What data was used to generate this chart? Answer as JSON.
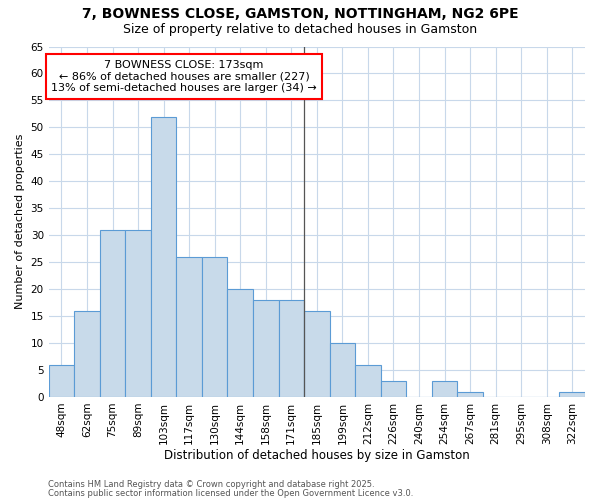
{
  "title1": "7, BOWNESS CLOSE, GAMSTON, NOTTINGHAM, NG2 6PE",
  "title2": "Size of property relative to detached houses in Gamston",
  "xlabel": "Distribution of detached houses by size in Gamston",
  "ylabel": "Number of detached properties",
  "categories": [
    "48sqm",
    "62sqm",
    "75sqm",
    "89sqm",
    "103sqm",
    "117sqm",
    "130sqm",
    "144sqm",
    "158sqm",
    "171sqm",
    "185sqm",
    "199sqm",
    "212sqm",
    "226sqm",
    "240sqm",
    "254sqm",
    "267sqm",
    "281sqm",
    "295sqm",
    "308sqm",
    "322sqm"
  ],
  "values": [
    6,
    16,
    31,
    31,
    52,
    26,
    26,
    20,
    18,
    18,
    16,
    10,
    6,
    3,
    0,
    3,
    1,
    0,
    0,
    0,
    1
  ],
  "bar_color": "#c8daea",
  "bar_edge_color": "#5b9bd5",
  "vline_x": 9.5,
  "annotation_title": "7 BOWNESS CLOSE: 173sqm",
  "annotation_line1": "← 86% of detached houses are smaller (227)",
  "annotation_line2": "13% of semi-detached houses are larger (34) →",
  "ylim": [
    0,
    65
  ],
  "yticks": [
    0,
    5,
    10,
    15,
    20,
    25,
    30,
    35,
    40,
    45,
    50,
    55,
    60,
    65
  ],
  "background_color": "#ffffff",
  "plot_bg_color": "#ffffff",
  "grid_color": "#c8d8ea",
  "vline_color": "#555555",
  "ann_box_color": "red",
  "footer1": "Contains HM Land Registry data © Crown copyright and database right 2025.",
  "footer2": "Contains public sector information licensed under the Open Government Licence v3.0.",
  "title1_fontsize": 10,
  "title2_fontsize": 9,
  "xlabel_fontsize": 8.5,
  "ylabel_fontsize": 8,
  "tick_fontsize": 7.5,
  "footer_fontsize": 6,
  "ann_fontsize": 8
}
